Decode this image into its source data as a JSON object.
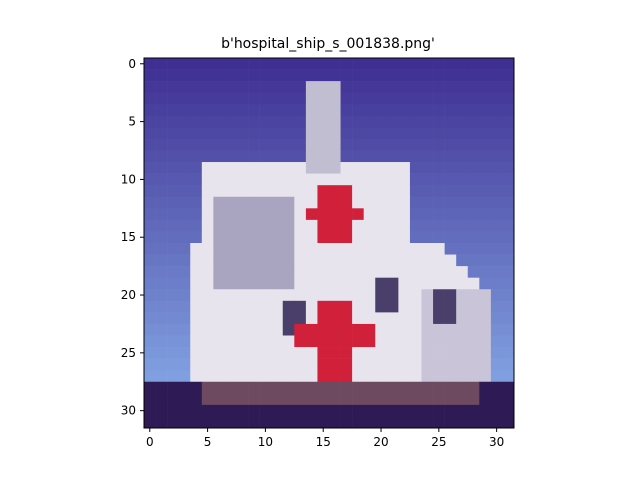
{
  "figure": {
    "title": "b'hospital_ship_s_001838.png'"
  },
  "image": {
    "subject": "pixelated white hospital ship with red crosses on blue sky",
    "grid_size": [
      32,
      32
    ],
    "colors": {
      "sky_top": "#3f2f92",
      "sky_bottom": "#7f9fe0",
      "hull": "#e8e4ee",
      "shadow": "#a9a4c0",
      "cross": "#d0203a",
      "water": "#2e1a55",
      "deck": "#6d4a60"
    }
  },
  "axes": {
    "x_ticks": [
      "0",
      "5",
      "10",
      "15",
      "20",
      "25",
      "30"
    ],
    "y_ticks": [
      "0",
      "5",
      "10",
      "15",
      "20",
      "25",
      "30"
    ],
    "x_tick_values": [
      0,
      5,
      10,
      15,
      20,
      25,
      30
    ],
    "y_tick_values": [
      0,
      5,
      10,
      15,
      20,
      25,
      30
    ],
    "xlim": [
      -0.5,
      31.5
    ],
    "ylim": [
      31.5,
      -0.5
    ]
  }
}
